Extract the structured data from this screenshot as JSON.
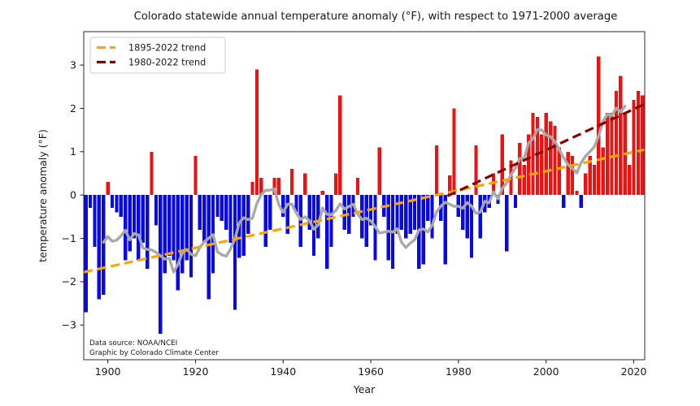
{
  "title": "Colorado statewide annual temperature anomaly (°F), with respect to 1971-2000 average",
  "axes": {
    "x_label": "Year",
    "y_label": "temperature anomaly (°F)",
    "x_ticks": [
      1900,
      1920,
      1940,
      1960,
      1980,
      2000,
      2020
    ],
    "y_ticks": [
      -3,
      -2,
      -1,
      0,
      1,
      2,
      3
    ]
  },
  "legend": {
    "items": [
      {
        "label": "1895-2022 trend",
        "color": "#FFA500"
      },
      {
        "label": "1980-2022 trend",
        "color": "#8B0000"
      }
    ]
  },
  "annotations": {
    "source_line1": "Data source: NOAA/NCEI",
    "source_line2": "Graphic by Colorado Climate Center"
  },
  "colors": {
    "positive_bar": "#ee1111",
    "negative_bar": "#0909e8",
    "smoothed_line": "#a9a9a9",
    "trend_full": "#FFA500",
    "trend_recent": "#8B0000",
    "axis": "#2b2b2b",
    "text": "#1a1a1a",
    "background": "#ffffff"
  },
  "chart_data": {
    "type": "bar",
    "title": "Colorado statewide annual temperature anomaly (°F), with respect to 1971-2000 average",
    "xlabel": "Year",
    "ylabel": "temperature anomaly (°F)",
    "xlim": [
      1894.5,
      2022.5
    ],
    "ylim": [
      -3.8,
      3.77
    ],
    "grid": false,
    "legend_position": "upper left",
    "bar_width_years": 0.8,
    "years_start": 1895,
    "years_end": 2022,
    "values": [
      -2.7,
      -0.3,
      -1.2,
      -2.4,
      -2.3,
      0.3,
      -0.3,
      -0.4,
      -0.5,
      -1.5,
      -1.3,
      -1.0,
      -1.5,
      -1.1,
      -1.7,
      1.0,
      -0.7,
      -3.2,
      -1.8,
      -1.4,
      -1.5,
      -2.2,
      -1.8,
      -1.5,
      -1.9,
      0.9,
      -0.8,
      -1.1,
      -2.4,
      -1.8,
      -0.5,
      -0.6,
      -0.8,
      -1.1,
      -2.65,
      -1.45,
      -1.4,
      -0.9,
      0.3,
      2.9,
      0.4,
      -1.2,
      -0.8,
      0.4,
      0.4,
      -0.5,
      -0.9,
      0.6,
      -0.4,
      -1.2,
      0.5,
      -0.8,
      -1.4,
      -1.0,
      0.1,
      -1.7,
      -1.2,
      0.5,
      2.3,
      -0.8,
      -0.9,
      -0.5,
      0.4,
      -1.0,
      -1.2,
      -0.7,
      -1.5,
      1.1,
      -0.5,
      -1.5,
      -1.7,
      -0.9,
      -0.8,
      -1.0,
      -0.9,
      -0.8,
      -1.7,
      -1.6,
      -0.6,
      -1.0,
      1.15,
      -0.6,
      -1.6,
      0.45,
      2.0,
      -0.5,
      -0.8,
      -1.0,
      -1.45,
      1.15,
      -1.0,
      -0.4,
      -0.3,
      0.5,
      -0.2,
      1.4,
      -1.3,
      0.8,
      -0.3,
      1.2,
      0.7,
      1.4,
      1.9,
      1.8,
      1.4,
      1.9,
      1.7,
      1.6,
      1.1,
      -0.3,
      1.0,
      0.9,
      0.1,
      -0.3,
      0.5,
      0.9,
      0.7,
      3.2,
      1.1,
      1.9,
      1.9,
      2.4,
      2.75,
      1.9,
      0.7,
      2.2,
      2.4,
      2.3
    ],
    "smoothed_series": {
      "name": "9-yr centered running mean",
      "window": 9
    },
    "trend_lines": [
      {
        "name": "1895-2022 trend",
        "x1": 1894.5,
        "y1": -1.78,
        "x2": 2022.5,
        "y2": 1.05,
        "style": "dashed"
      },
      {
        "name": "1980-2022 trend",
        "x1": 1977.5,
        "y1": -0.02,
        "x2": 2022.5,
        "y2": 2.1,
        "style": "dashed"
      }
    ]
  }
}
